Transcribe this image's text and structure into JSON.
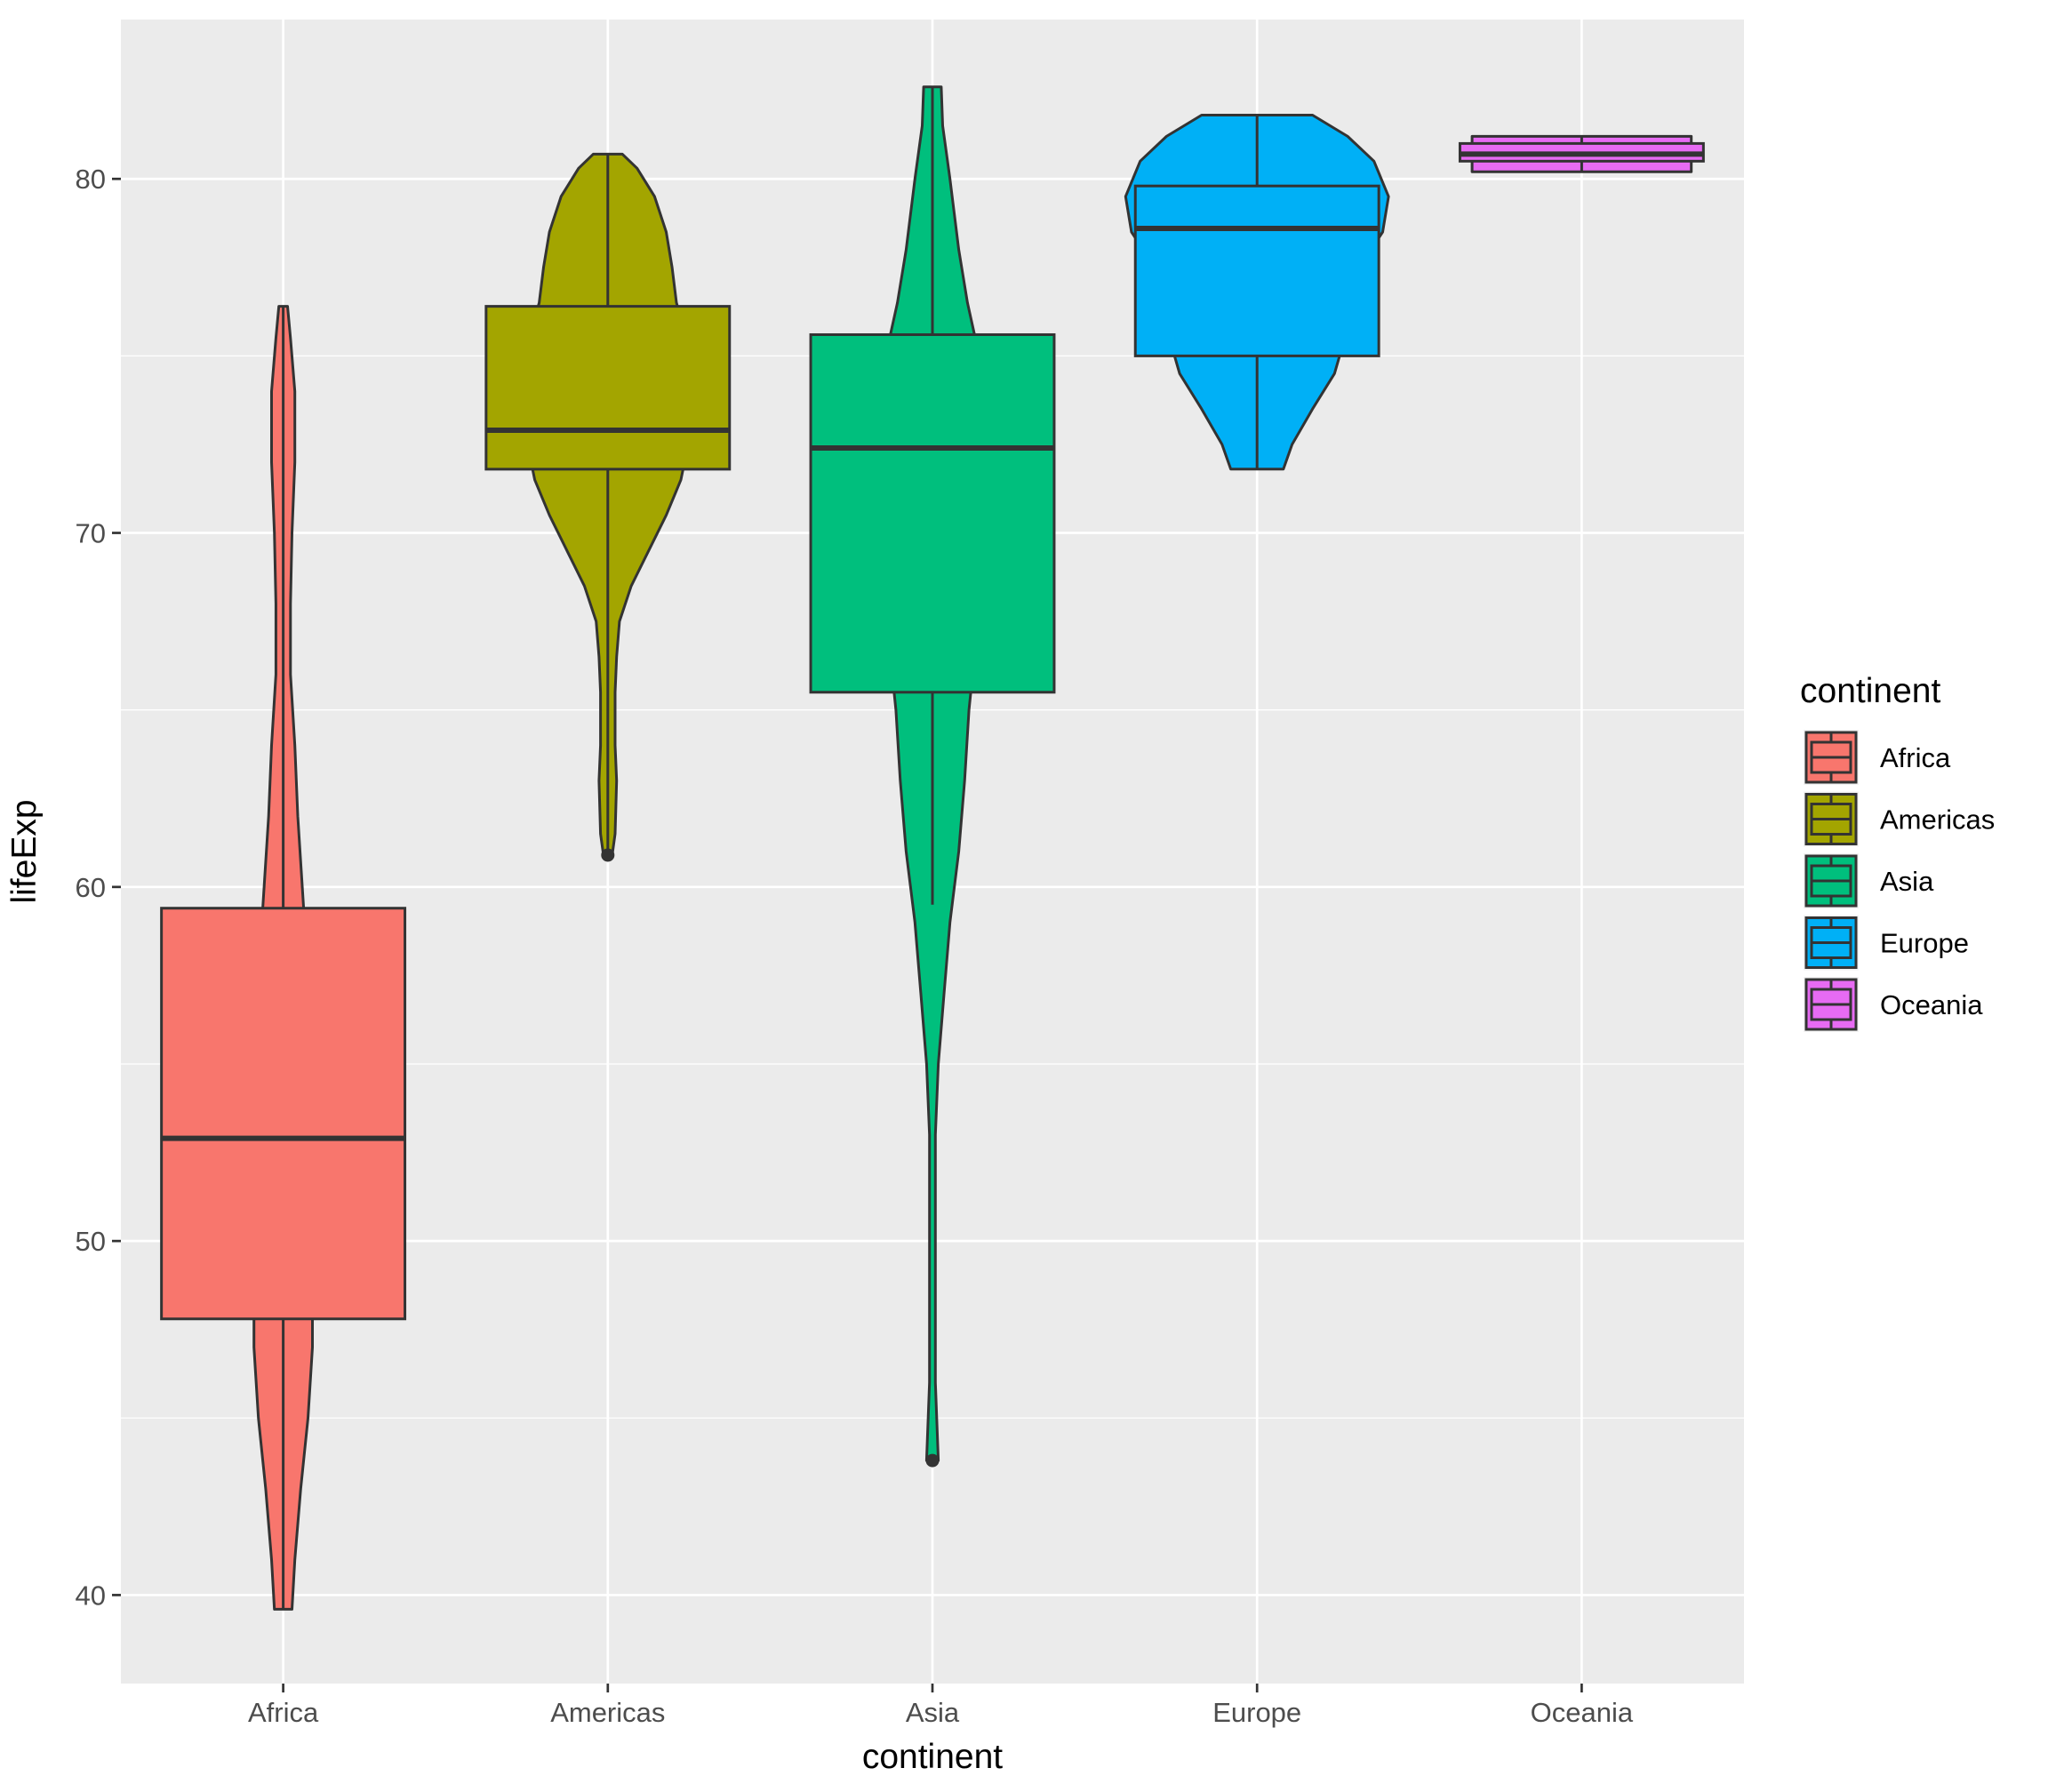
{
  "chart_data": {
    "type": "violin+boxplot",
    "xlabel": "continent",
    "ylabel": "lifeExp",
    "yticks": [
      40,
      50,
      60,
      70,
      80
    ],
    "ylim": [
      37.5,
      84.5
    ],
    "grid": true,
    "legend": {
      "title": "continent",
      "position": "right"
    },
    "categories": [
      "Africa",
      "Americas",
      "Asia",
      "Europe",
      "Oceania"
    ],
    "series": [
      {
        "name": "Africa",
        "color": "#F8766D",
        "stats": {
          "min": 39.6,
          "q1": 47.8,
          "median": 52.9,
          "q3": 59.4,
          "max": 76.4
        },
        "outliers": [],
        "density": [
          [
            39.6,
            0.06
          ],
          [
            41,
            0.08
          ],
          [
            43,
            0.12
          ],
          [
            45,
            0.17
          ],
          [
            47,
            0.2
          ],
          [
            50,
            0.2
          ],
          [
            52,
            0.2
          ],
          [
            55,
            0.2
          ],
          [
            57,
            0.18
          ],
          [
            59.4,
            0.14
          ],
          [
            62,
            0.1
          ],
          [
            64,
            0.08
          ],
          [
            66,
            0.05
          ],
          [
            68,
            0.05
          ],
          [
            70,
            0.06
          ],
          [
            72,
            0.08
          ],
          [
            74,
            0.08
          ],
          [
            75.5,
            0.05
          ],
          [
            76.4,
            0.03
          ]
        ]
      },
      {
        "name": "Americas",
        "color": "#A3A500",
        "stats": {
          "min": 61.0,
          "q1": 71.8,
          "median": 72.9,
          "q3": 76.4,
          "max": 80.7
        },
        "outliers": [
          60.9
        ],
        "density": [
          [
            60.9,
            0.03
          ],
          [
            61.5,
            0.05
          ],
          [
            63,
            0.06
          ],
          [
            64,
            0.05
          ],
          [
            65.5,
            0.05
          ],
          [
            66.5,
            0.06
          ],
          [
            67.5,
            0.08
          ],
          [
            68.5,
            0.16
          ],
          [
            69.5,
            0.28
          ],
          [
            70.5,
            0.4
          ],
          [
            71.5,
            0.5
          ],
          [
            72.5,
            0.55
          ],
          [
            74,
            0.55
          ],
          [
            75.5,
            0.54
          ],
          [
            76.5,
            0.47
          ],
          [
            77.5,
            0.44
          ],
          [
            78.5,
            0.4
          ],
          [
            79.5,
            0.32
          ],
          [
            80.3,
            0.2
          ],
          [
            80.7,
            0.1
          ]
        ]
      },
      {
        "name": "Asia",
        "color": "#00BF7D",
        "stats": {
          "min": 59.5,
          "q1": 65.5,
          "median": 72.4,
          "q3": 75.6,
          "max": 82.6
        },
        "outliers": [
          43.8
        ],
        "density": [
          [
            43.8,
            0.04
          ],
          [
            46,
            0.02
          ],
          [
            50,
            0.02
          ],
          [
            53,
            0.02
          ],
          [
            55,
            0.04
          ],
          [
            57,
            0.08
          ],
          [
            59,
            0.12
          ],
          [
            61,
            0.18
          ],
          [
            63,
            0.22
          ],
          [
            65,
            0.25
          ],
          [
            67,
            0.3
          ],
          [
            69,
            0.35
          ],
          [
            71,
            0.38
          ],
          [
            73,
            0.4
          ],
          [
            75,
            0.32
          ],
          [
            76.5,
            0.24
          ],
          [
            78,
            0.18
          ],
          [
            80,
            0.12
          ],
          [
            81.5,
            0.07
          ],
          [
            82.6,
            0.06
          ]
        ]
      },
      {
        "name": "Europe",
        "color": "#00B0F6",
        "stats": {
          "min": 71.8,
          "q1": 75.0,
          "median": 78.6,
          "q3": 79.8,
          "max": 81.8
        },
        "outliers": [],
        "density": [
          [
            71.8,
            0.18
          ],
          [
            72.5,
            0.24
          ],
          [
            73.5,
            0.38
          ],
          [
            74.5,
            0.53
          ],
          [
            75.5,
            0.6
          ],
          [
            76.5,
            0.64
          ],
          [
            77.5,
            0.7
          ],
          [
            78.5,
            0.86
          ],
          [
            79.5,
            0.9
          ],
          [
            80.5,
            0.8
          ],
          [
            81.2,
            0.62
          ],
          [
            81.8,
            0.38
          ]
        ]
      },
      {
        "name": "Oceania",
        "color": "#E76BF3",
        "stats": {
          "min": 80.2,
          "q1": 80.5,
          "median": 80.7,
          "q3": 81.0,
          "max": 81.2
        },
        "outliers": [],
        "density": [
          [
            80.2,
            0.75
          ],
          [
            81.2,
            0.75
          ]
        ]
      }
    ]
  }
}
